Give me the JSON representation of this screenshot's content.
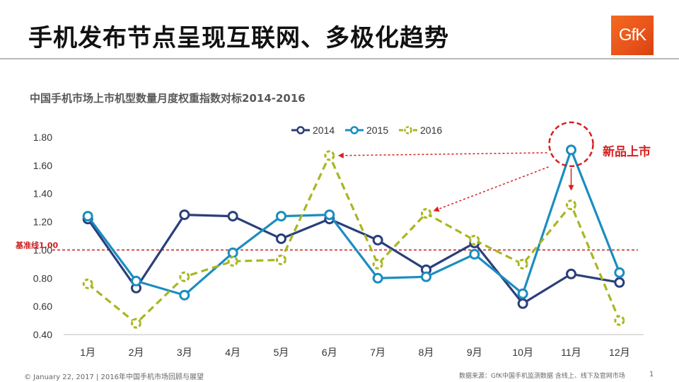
{
  "slide": {
    "title": "手机发布节点呈现互联网、多极化趋势",
    "logo_text": "GfK",
    "footer_left": "© January 22, 2017 | 2016年中国手机市场回顾与展望",
    "footer_right": "数据来源：GfK中国手机监测数据 含线上、线下及官网市场",
    "page_number": "1"
  },
  "chart_data": {
    "type": "line",
    "title": "中国手机市场上市机型数量月度权重指数对标2014-2016",
    "categories": [
      "1月",
      "2月",
      "3月",
      "4月",
      "5月",
      "6月",
      "7月",
      "8月",
      "9月",
      "10月",
      "11月",
      "12月"
    ],
    "ylim": [
      0.4,
      1.8
    ],
    "yticks": [
      "0.40",
      "0.60",
      "0.80",
      "1.00",
      "1.20",
      "1.40",
      "1.60",
      "1.80"
    ],
    "legend_position": "top-center",
    "series": [
      {
        "name": "2014",
        "color": "#2a3f7a",
        "dash": false,
        "values": [
          1.22,
          0.73,
          1.25,
          1.24,
          1.08,
          1.22,
          1.07,
          0.86,
          1.05,
          0.62,
          0.83,
          0.77
        ]
      },
      {
        "name": "2015",
        "color": "#1a8dc0",
        "dash": false,
        "values": [
          1.24,
          0.78,
          0.68,
          0.98,
          1.24,
          1.25,
          0.8,
          0.81,
          0.97,
          0.69,
          1.71,
          0.84
        ]
      },
      {
        "name": "2016",
        "color": "#a9b621",
        "dash": true,
        "values": [
          0.76,
          0.48,
          0.81,
          0.92,
          0.93,
          1.67,
          0.9,
          1.26,
          1.07,
          0.9,
          1.32,
          0.5
        ]
      }
    ],
    "baseline": {
      "value": 1.0,
      "label": "基准线1.00",
      "color": "#cc1f1f"
    },
    "annotation": {
      "text": "新品上市",
      "color": "#d62020"
    }
  }
}
